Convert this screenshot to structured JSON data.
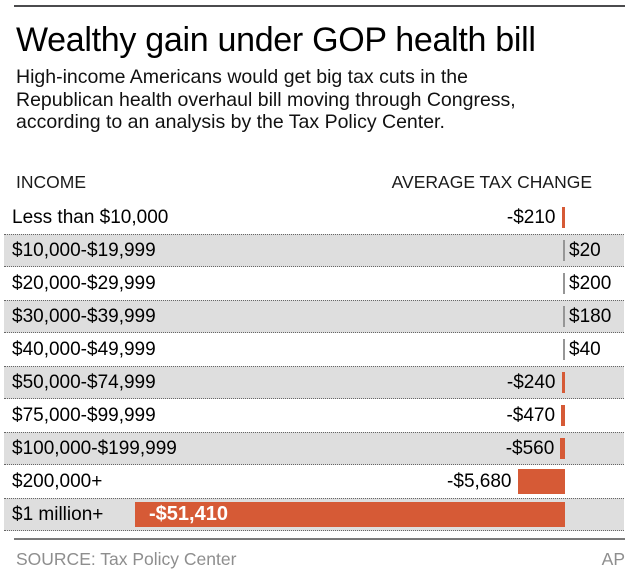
{
  "header": {
    "title": "Wealthy gain under GOP health bill",
    "subtitle_lines": [
      "High-income Americans would get big tax cuts in the",
      "Republican health overhaul bill moving through Congress,",
      "according to an analysis by the Tax Policy Center."
    ]
  },
  "table": {
    "income_header": "INCOME",
    "change_header": "AVERAGE TAX CHANGE"
  },
  "chart_data": {
    "type": "bar",
    "orientation": "horizontal",
    "title": "Wealthy gain under GOP health bill",
    "xlabel": "AVERAGE TAX CHANGE",
    "ylabel": "INCOME",
    "categories": [
      "Less than $10,000",
      "$10,000-$19,999",
      "$20,000-$29,999",
      "$30,000-$39,999",
      "$40,000-$49,999",
      "$50,000-$74,999",
      "$75,000-$99,999",
      "$100,000-$199,999",
      "$200,000+",
      "$1 million+"
    ],
    "values": [
      -210,
      20,
      200,
      180,
      40,
      -240,
      -470,
      -560,
      -5680,
      -51410
    ],
    "value_labels": [
      "-$210",
      "$20",
      "$200",
      "$180",
      "$40",
      "-$240",
      "-$470",
      "-$560",
      "-$5,680",
      "-$51,410"
    ],
    "negative_color": "#d65a36",
    "positive_color": "#969696",
    "axis_side": "right",
    "xlim": [
      -51410,
      200
    ],
    "grid": false,
    "legend": false
  },
  "footer": {
    "source": "SOURCE: Tax Policy Center",
    "credit": "AP"
  }
}
